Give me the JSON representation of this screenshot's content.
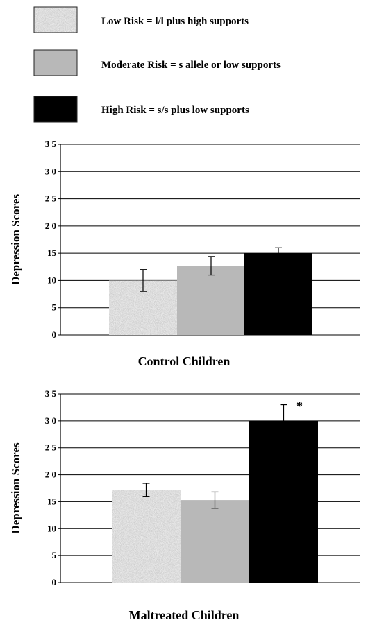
{
  "legend": [
    {
      "label": "Low Risk = l/l plus high supports",
      "fill": "speckle"
    },
    {
      "label": "Moderate Risk = s allele or low supports",
      "fill": "#b8b8b8"
    },
    {
      "label": "High Risk = s/s plus low supports",
      "fill": "#000000"
    }
  ],
  "chart_data": [
    {
      "type": "bar",
      "title": "Control Children",
      "xlabel": "",
      "ylabel": "Depression Scores",
      "ylim": [
        0,
        35
      ],
      "yticks": [
        0,
        5,
        10,
        15,
        20,
        25,
        30,
        35
      ],
      "ytick_labels": [
        "0",
        "5",
        "10",
        "15",
        "2 0",
        "2 5",
        "3 0",
        "3 5"
      ],
      "categories": [
        "Low Risk = l/l plus high supports",
        "Moderate Risk = s allele or low supports",
        "High Risk = s/s plus low supports"
      ],
      "values": [
        10.0,
        12.7,
        15.0
      ],
      "errors": [
        2.0,
        1.7,
        1.0
      ],
      "colors": [
        "speckle",
        "#b8b8b8",
        "#000000"
      ],
      "grid": true,
      "annotation": ""
    },
    {
      "type": "bar",
      "title": "Maltreated Children",
      "xlabel": "",
      "ylabel": "Depression Scores",
      "ylim": [
        0,
        35
      ],
      "yticks": [
        0,
        5,
        10,
        15,
        20,
        25,
        30,
        35
      ],
      "ytick_labels": [
        "0",
        "5",
        "10",
        "15",
        "2 0",
        "2 5",
        "3 0",
        "3 5"
      ],
      "categories": [
        "Low Risk = l/l plus high supports",
        "Moderate Risk = s allele or low supports",
        "High Risk = s/s plus low supports"
      ],
      "values": [
        17.2,
        15.3,
        30.0
      ],
      "errors": [
        1.2,
        1.5,
        3.0
      ],
      "colors": [
        "speckle",
        "#b8b8b8",
        "#000000"
      ],
      "grid": true,
      "annotation": "*"
    }
  ]
}
